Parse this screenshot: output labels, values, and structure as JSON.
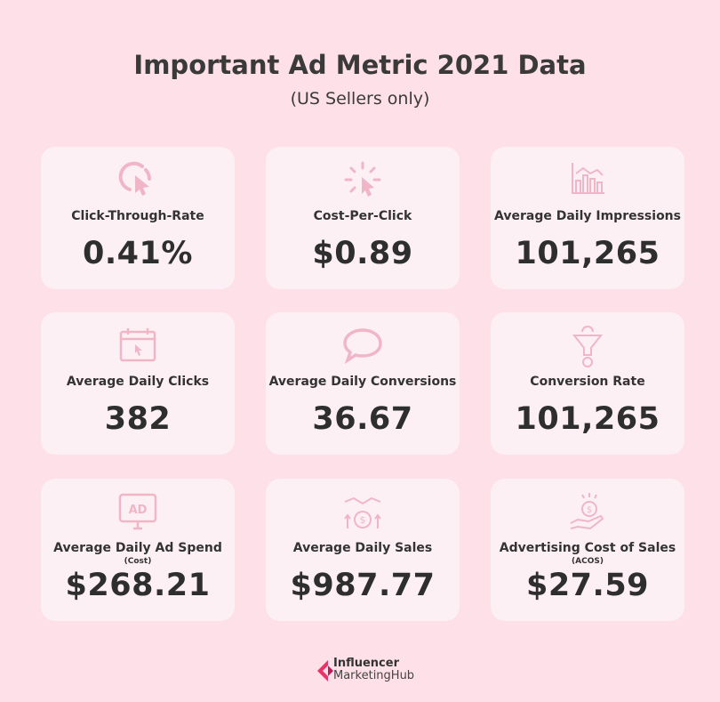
{
  "title": "Important Ad Metric 2021 Data",
  "subtitle": "(US Sellers only)",
  "colors": {
    "background": "#fde0e8",
    "card": "#fdf0f4",
    "icon": "#f0b6c8",
    "text": "#333333",
    "logo": "#e8336b"
  },
  "metrics": [
    {
      "icon": "cursor-click-icon",
      "label": "Click-Through-Rate",
      "value": "0.41%"
    },
    {
      "icon": "cursor-burst-icon",
      "label": "Cost-Per-Click",
      "value": "$0.89"
    },
    {
      "icon": "bar-chart-icon",
      "label": "Average Daily Impressions",
      "value": "101,265"
    },
    {
      "icon": "calendar-click-icon",
      "label": "Average Daily Clicks",
      "value": "382"
    },
    {
      "icon": "speech-bubble-icon",
      "label": "Average Daily Conversions",
      "value": "36.67"
    },
    {
      "icon": "funnel-dollar-icon",
      "label": "Conversion Rate",
      "value": "101,265"
    },
    {
      "icon": "ad-monitor-icon",
      "label": "Average Daily Ad Spend",
      "sublabel": "(Cost)",
      "value": "$268.21"
    },
    {
      "icon": "handshake-dollar-icon",
      "label": "Average Daily Sales",
      "value": "$987.77"
    },
    {
      "icon": "hand-coin-icon",
      "label": "Advertising Cost of Sales",
      "sublabel": "(ACOS)",
      "value": "$27.59"
    }
  ],
  "logo": {
    "line1": "Influencer",
    "line2": "MarketingHub"
  }
}
